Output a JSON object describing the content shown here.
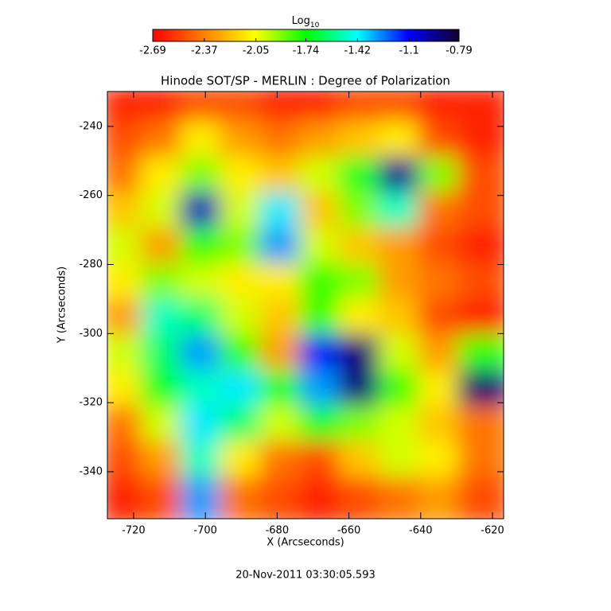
{
  "chart_data": {
    "type": "heatmap",
    "title": "Hinode SOT/SP - MERLIN : Degree of Polarization",
    "x_label": "X (Arcseconds)",
    "y_label": "Y (Arcseconds)",
    "footer": "20-Nov-2011 03:30:05.593",
    "colorbar_label": "Log",
    "colorbar_label_sub": "10",
    "colormap": [
      "#ff0000",
      "#ff8000",
      "#ffff00",
      "#00ff00",
      "#00ffff",
      "#0000ff",
      "#12002a"
    ],
    "zlim": [
      -2.69,
      -0.79
    ],
    "zticks": [
      -2.69,
      -2.37,
      -2.05,
      -1.74,
      -1.42,
      -1.1,
      -0.79
    ],
    "xlim": [
      -727.3,
      -616.9
    ],
    "xticks": [
      -720,
      -700,
      -680,
      -660,
      -640,
      -620
    ],
    "ylim": [
      -353.6,
      -229.9
    ],
    "yticks": [
      -240,
      -260,
      -280,
      -300,
      -320,
      -340
    ],
    "z": [
      [
        -2.6,
        -2.6,
        -2.5,
        -2.5,
        -2.6,
        -2.6,
        -2.5,
        -2.5,
        -2.6,
        -2.6
      ],
      [
        -2.5,
        -2.4,
        -2.1,
        -2.3,
        -2.4,
        -2.3,
        -2.2,
        -2.1,
        -2.5,
        -2.6
      ],
      [
        -2.4,
        -2.1,
        -1.9,
        -2.1,
        -2.2,
        -2.0,
        -1.7,
        -0.95,
        -1.9,
        -2.5
      ],
      [
        -2.2,
        -2.0,
        -1.0,
        -2.0,
        -1.4,
        -2.2,
        -1.9,
        -1.5,
        -2.4,
        -2.5
      ],
      [
        -2.0,
        -2.3,
        -1.8,
        -1.9,
        -1.3,
        -2.0,
        -2.2,
        -2.3,
        -2.5,
        -2.6
      ],
      [
        -2.1,
        -1.9,
        -2.0,
        -2.1,
        -2.1,
        -1.8,
        -1.9,
        -2.3,
        -2.4,
        -2.5
      ],
      [
        -2.3,
        -1.5,
        -1.6,
        -2.0,
        -2.2,
        -1.8,
        -2.1,
        -2.2,
        -2.5,
        -2.6
      ],
      [
        -2.0,
        -1.6,
        -1.3,
        -1.8,
        -2.3,
        -1.1,
        -0.9,
        -2.0,
        -2.3,
        -1.8
      ],
      [
        -2.1,
        -1.7,
        -1.5,
        -1.4,
        -1.7,
        -1.3,
        -0.9,
        -1.8,
        -2.1,
        -0.9
      ],
      [
        -2.4,
        -2.0,
        -1.4,
        -1.6,
        -2.0,
        -1.7,
        -1.9,
        -2.0,
        -2.2,
        -2.4
      ],
      [
        -2.5,
        -2.3,
        -1.5,
        -2.1,
        -2.4,
        -2.5,
        -2.2,
        -2.0,
        -2.1,
        -2.4
      ],
      [
        -2.6,
        -2.5,
        -1.3,
        -2.4,
        -2.5,
        -2.6,
        -2.5,
        -2.4,
        -2.3,
        -2.5
      ]
    ]
  }
}
